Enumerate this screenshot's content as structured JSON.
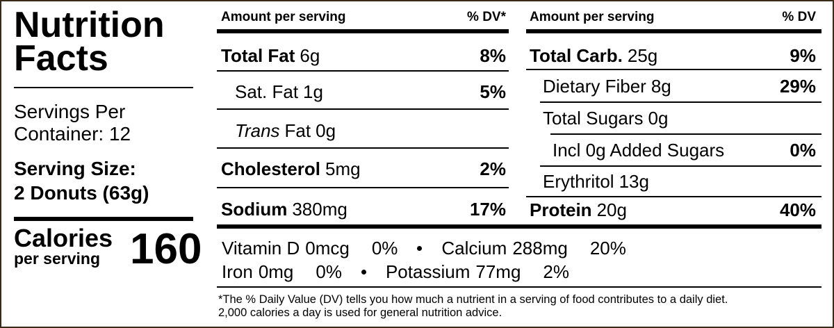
{
  "title": [
    "Nutrition",
    "Facts"
  ],
  "servings": [
    "Servings Per",
    "Container: 12"
  ],
  "serving_size": [
    "Serving Size:",
    "2 Donuts (63g)"
  ],
  "calories": {
    "label": "Calories",
    "sublabel": "per serving",
    "value": "160"
  },
  "left_table": {
    "header": {
      "amount": "Amount per serving",
      "dv": "% DV*"
    },
    "rows": [
      {
        "name": "Total Fat",
        "amount": "6g",
        "dv": "8%"
      },
      {
        "name": "Sat. Fat",
        "amount": "1g",
        "dv": "5%"
      },
      {
        "name_italic": "Trans",
        "name": "Fat",
        "amount": "0g"
      },
      {
        "name": "Cholesterol",
        "amount": "5mg",
        "dv": "2%"
      },
      {
        "name": "Sodium",
        "amount": "380mg",
        "dv": "17%"
      }
    ]
  },
  "right_table": {
    "header": {
      "amount": "Amount per serving",
      "dv": "% DV"
    },
    "rows": [
      {
        "name": "Total Carb.",
        "amount": "25g",
        "dv": "9%"
      },
      {
        "name": "Dietary Fiber",
        "amount": "8g",
        "dv": "29%"
      },
      {
        "name": "Total Sugars",
        "amount": "0g"
      },
      {
        "name": "Incl 0g Added Sugars",
        "dv": "0%"
      },
      {
        "name": "Erythritol",
        "amount": "13g"
      },
      {
        "name": "Protein",
        "amount": "20g",
        "dv": "40%"
      }
    ]
  },
  "vitamins": [
    [
      {
        "name": "Vitamin D",
        "amount": "0mcg",
        "dv": "0%"
      },
      {
        "name": "Calcium",
        "amount": "288mg",
        "dv": "20%"
      }
    ],
    [
      {
        "name": "Iron",
        "amount": "0mg",
        "dv": "0%"
      },
      {
        "name": "Potassium",
        "amount": "77mg",
        "dv": "2%"
      }
    ]
  ],
  "footnote": [
    "*The % Daily Value (DV) tells you how much a nutrient in a serving of food contributes to a daily diet.",
    "2,000 calories a day is used for general nutrition advice."
  ]
}
